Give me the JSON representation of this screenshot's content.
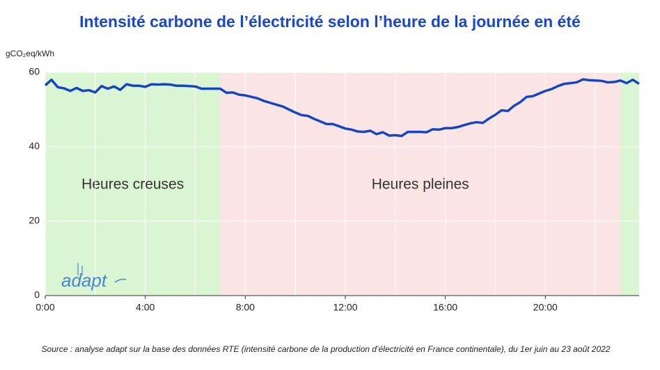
{
  "chart_data": {
    "type": "line",
    "title": "Intensité carbone de l’électricité selon l’heure de la journée en été",
    "y_axis_label": "gCO₂eq/kWh",
    "source": "Source : analyse adapt sur la base des données RTE (intensité carbone de la production d’électricité en France continentale), du 1er juin au 23 août 2022",
    "logo": "adapt",
    "xlim": [
      0,
      23.75
    ],
    "xticks": [
      {
        "value": 0,
        "label": "0:00"
      },
      {
        "value": 4,
        "label": "4:00"
      },
      {
        "value": 8,
        "label": "8:00"
      },
      {
        "value": 12,
        "label": "12:00"
      },
      {
        "value": 16,
        "label": "16:00"
      },
      {
        "value": 20,
        "label": "20:00"
      }
    ],
    "x_minor_grid": [
      2,
      6,
      10,
      14,
      18,
      22
    ],
    "ylim": [
      0,
      60
    ],
    "yticks": [
      0,
      20,
      40,
      60
    ],
    "grid": true,
    "regions": [
      {
        "start": 0,
        "end": 7,
        "color": "#daf5d2",
        "label": "Heures creuses"
      },
      {
        "start": 7,
        "end": 23,
        "color": "#fbe4e4",
        "label": "Heures pleines"
      },
      {
        "start": 23,
        "end": 23.75,
        "color": "#daf5d2"
      }
    ],
    "x": [
      0,
      0.25,
      0.5,
      0.75,
      1,
      1.25,
      1.5,
      1.75,
      2,
      2.25,
      2.5,
      2.75,
      3,
      3.25,
      3.5,
      3.75,
      4,
      4.25,
      4.5,
      4.75,
      5,
      5.25,
      5.5,
      5.75,
      6,
      6.25,
      6.5,
      6.75,
      7,
      7.25,
      7.5,
      7.75,
      8,
      8.25,
      8.5,
      8.75,
      9,
      9.25,
      9.5,
      9.75,
      10,
      10.25,
      10.5,
      10.75,
      11,
      11.25,
      11.5,
      11.75,
      12,
      12.25,
      12.5,
      12.75,
      13,
      13.25,
      13.5,
      13.75,
      14,
      14.25,
      14.5,
      14.75,
      15,
      15.25,
      15.5,
      15.75,
      16,
      16.25,
      16.5,
      16.75,
      17,
      17.25,
      17.5,
      17.75,
      18,
      18.25,
      18.5,
      18.75,
      19,
      19.25,
      19.5,
      19.75,
      20,
      20.25,
      20.5,
      20.75,
      21,
      21.25,
      21.5,
      21.75,
      22,
      22.25,
      22.5,
      22.75,
      23,
      23.25,
      23.5,
      23.75
    ],
    "series": [
      {
        "color": "#1446c4",
        "values": [
          56.5,
          58,
          56,
          55.7,
          55,
          55.8,
          55,
          55.2,
          54.6,
          56.3,
          55.6,
          56.2,
          55.3,
          56.8,
          56.4,
          56.4,
          56.1,
          56.8,
          56.7,
          56.8,
          56.7,
          56.4,
          56.4,
          56.3,
          56.2,
          55.6,
          55.6,
          55.6,
          55.6,
          54.5,
          54.6,
          54,
          53.8,
          53.4,
          53,
          52.3,
          51.8,
          51.3,
          50.8,
          50,
          49.2,
          48.5,
          48.3,
          47.5,
          46.8,
          46.1,
          46.1,
          45.5,
          44.9,
          44.6,
          44.1,
          44,
          44.3,
          43.4,
          43.9,
          43,
          43.1,
          42.9,
          44,
          44,
          44,
          43.9,
          44.7,
          44.6,
          45,
          45,
          45.3,
          45.8,
          46.3,
          46.6,
          46.4,
          47.6,
          48.6,
          49.8,
          49.6,
          51,
          52,
          53.4,
          53.6,
          54.3,
          55,
          55.5,
          56.3,
          56.9,
          57.1,
          57.3,
          58.1,
          57.9,
          57.8,
          57.7,
          57.3,
          57.4,
          57.8,
          57.1,
          58,
          56.9
        ]
      }
    ]
  }
}
